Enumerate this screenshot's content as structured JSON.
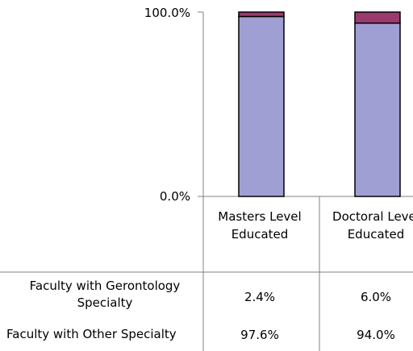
{
  "chart_data": {
    "type": "bar",
    "stacked": true,
    "orientation": "vertical",
    "categories": [
      "Masters Level Educated",
      "Doctoral Level Educated"
    ],
    "series": [
      {
        "name": "Faculty with Other Specialty",
        "values": [
          97.6,
          94.0
        ],
        "color": "#a09fd4",
        "labels": [
          "97.6%",
          "94.0%"
        ]
      },
      {
        "name": "Faculty with Gerontology Specialty",
        "values": [
          2.4,
          6.0
        ],
        "color": "#9b3a6d",
        "labels": [
          "2.4%",
          "6.0%"
        ]
      }
    ],
    "ylim": [
      0,
      100
    ],
    "y_ticks": [
      "100.0%",
      "0.0%"
    ],
    "grid": false,
    "legend": "data table below chart",
    "data_table_rows": [
      {
        "label": "Faculty with Gerontology Specialty",
        "values": [
          "2.4%",
          "6.0%"
        ]
      },
      {
        "label": "Faculty with Other Specialty",
        "values": [
          "97.6%",
          "94.0%"
        ]
      }
    ]
  }
}
